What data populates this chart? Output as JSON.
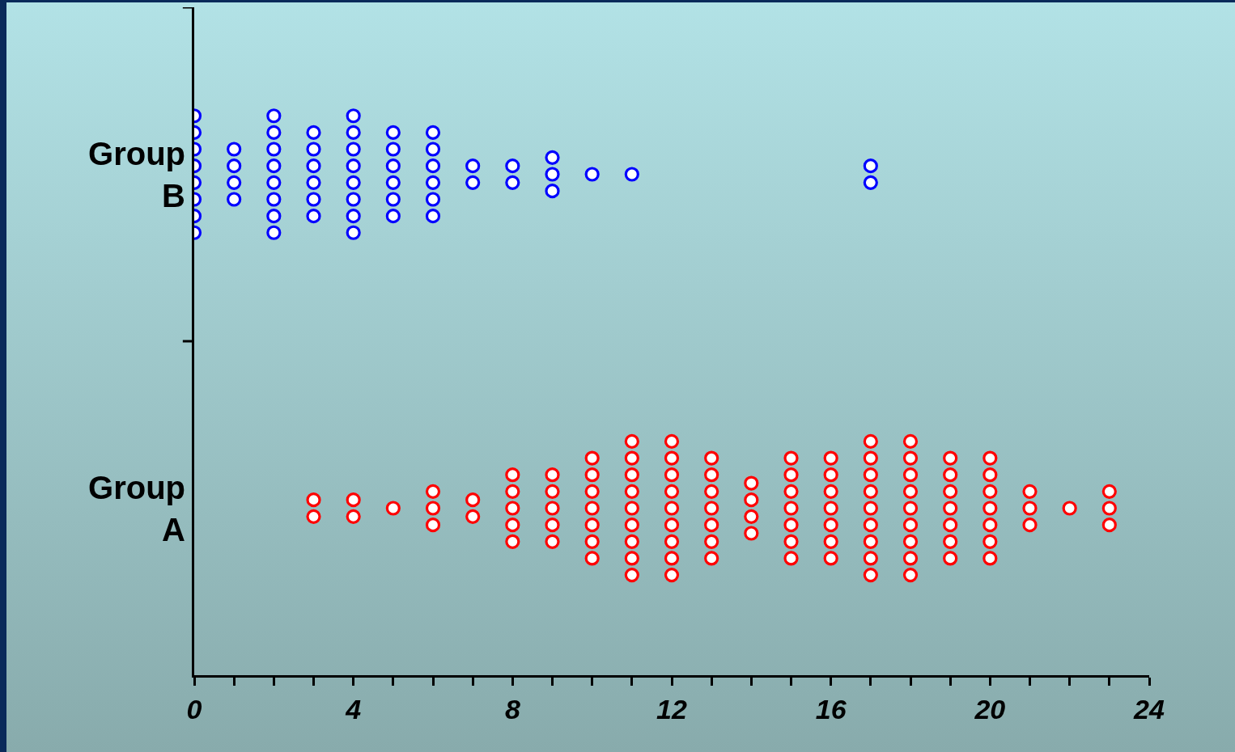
{
  "chart_data": {
    "type": "scatter",
    "orientation": "horizontal",
    "categories": [
      "Group B",
      "Group A"
    ],
    "series": [
      {
        "color": "#0000ff",
        "values": [
          0,
          0,
          0,
          0,
          0,
          0,
          0,
          0,
          1,
          1,
          1,
          1,
          2,
          2,
          2,
          2,
          2,
          2,
          2,
          2,
          3,
          3,
          3,
          3,
          3,
          3,
          4,
          4,
          4,
          4,
          4,
          4,
          4,
          4,
          5,
          5,
          5,
          5,
          5,
          5,
          6,
          6,
          6,
          6,
          6,
          6,
          7,
          7,
          8,
          8,
          9,
          9,
          9,
          10,
          11,
          17,
          17
        ],
        "x": [
          "Group B",
          "Group B",
          "Group B",
          "Group B",
          "Group B",
          "Group B",
          "Group B",
          "Group B",
          "Group B",
          "Group B",
          "Group B",
          "Group B",
          "Group B",
          "Group B",
          "Group B",
          "Group B",
          "Group B",
          "Group B",
          "Group B",
          "Group B",
          "Group B",
          "Group B",
          "Group B",
          "Group B",
          "Group B",
          "Group B",
          "Group B",
          "Group B",
          "Group B",
          "Group B",
          "Group B",
          "Group B",
          "Group B",
          "Group B",
          "Group B",
          "Group B",
          "Group B",
          "Group B",
          "Group B",
          "Group B",
          "Group B",
          "Group B",
          "Group B",
          "Group B",
          "Group B",
          "Group B",
          "Group B",
          "Group B",
          "Group B",
          "Group B",
          "Group B",
          "Group B",
          "Group B",
          "Group B",
          "Group B",
          "Group B",
          "Group B"
        ]
      },
      {
        "color": "#ff0000",
        "values": [
          3,
          3,
          4,
          4,
          5,
          6,
          6,
          6,
          7,
          7,
          8,
          8,
          8,
          8,
          8,
          9,
          9,
          9,
          9,
          9,
          10,
          10,
          10,
          10,
          10,
          10,
          10,
          11,
          11,
          11,
          11,
          11,
          11,
          11,
          11,
          11,
          12,
          12,
          12,
          12,
          12,
          12,
          12,
          12,
          12,
          13,
          13,
          13,
          13,
          13,
          13,
          13,
          14,
          14,
          14,
          14,
          15,
          15,
          15,
          15,
          15,
          15,
          15,
          16,
          16,
          16,
          16,
          16,
          16,
          16,
          17,
          17,
          17,
          17,
          17,
          17,
          17,
          17,
          17,
          18,
          18,
          18,
          18,
          18,
          18,
          18,
          18,
          18,
          19,
          19,
          19,
          19,
          19,
          19,
          19,
          20,
          20,
          20,
          20,
          20,
          20,
          20,
          21,
          21,
          21,
          22,
          23,
          23,
          23
        ],
        "x": [
          "Group A",
          "Group A",
          "Group A",
          "Group A",
          "Group A",
          "Group A",
          "Group A",
          "Group A",
          "Group A",
          "Group A",
          "Group A",
          "Group A",
          "Group A",
          "Group A",
          "Group A",
          "Group A",
          "Group A",
          "Group A",
          "Group A",
          "Group A",
          "Group A",
          "Group A",
          "Group A",
          "Group A",
          "Group A",
          "Group A",
          "Group A",
          "Group A",
          "Group A",
          "Group A",
          "Group A",
          "Group A",
          "Group A",
          "Group A",
          "Group A",
          "Group A",
          "Group A",
          "Group A",
          "Group A",
          "Group A",
          "Group A",
          "Group A",
          "Group A",
          "Group A",
          "Group A",
          "Group A",
          "Group A",
          "Group A",
          "Group A",
          "Group A",
          "Group A",
          "Group A",
          "Group A",
          "Group A",
          "Group A",
          "Group A",
          "Group A",
          "Group A",
          "Group A",
          "Group A",
          "Group A",
          "Group A",
          "Group A",
          "Group A",
          "Group A",
          "Group A",
          "Group A",
          "Group A",
          "Group A",
          "Group A",
          "Group A",
          "Group A",
          "Group A",
          "Group A",
          "Group A",
          "Group A",
          "Group A",
          "Group A",
          "Group A",
          "Group A",
          "Group A",
          "Group A",
          "Group A",
          "Group A",
          "Group A",
          "Group A",
          "Group A",
          "Group A",
          "Group A",
          "Group A",
          "Group A",
          "Group A",
          "Group A",
          "Group A",
          "Group A",
          "Group A",
          "Group A",
          "Group A",
          "Group A",
          "Group A",
          "Group A",
          "Group A",
          "Group A",
          "Group A",
          "Group A",
          "Group A",
          "Group A",
          "Group A",
          "Group A"
        ]
      }
    ],
    "xlim": [
      0,
      24
    ],
    "xticks": [
      0,
      {
        "value": 1,
        "label": null
      },
      {
        "value": 2,
        "label": null
      },
      {
        "value": 3,
        "label": null
      },
      4,
      {
        "value": 5,
        "label": null
      },
      {
        "value": 6,
        "label": null
      },
      {
        "value": 7,
        "label": null
      },
      8,
      {
        "value": 9,
        "label": null
      },
      {
        "value": 10,
        "label": null
      },
      {
        "value": 11,
        "label": null
      },
      12,
      {
        "value": 13,
        "label": null
      },
      {
        "value": 14,
        "label": null
      },
      {
        "value": 15,
        "label": null
      },
      16,
      {
        "value": 17,
        "label": null
      },
      {
        "value": 18,
        "label": null
      },
      {
        "value": 19,
        "label": null
      },
      20,
      {
        "value": 21,
        "label": null
      },
      {
        "value": 22,
        "label": null
      },
      {
        "value": 23,
        "label": null
      },
      24
    ],
    "marker": "circle",
    "grid": false
  }
}
